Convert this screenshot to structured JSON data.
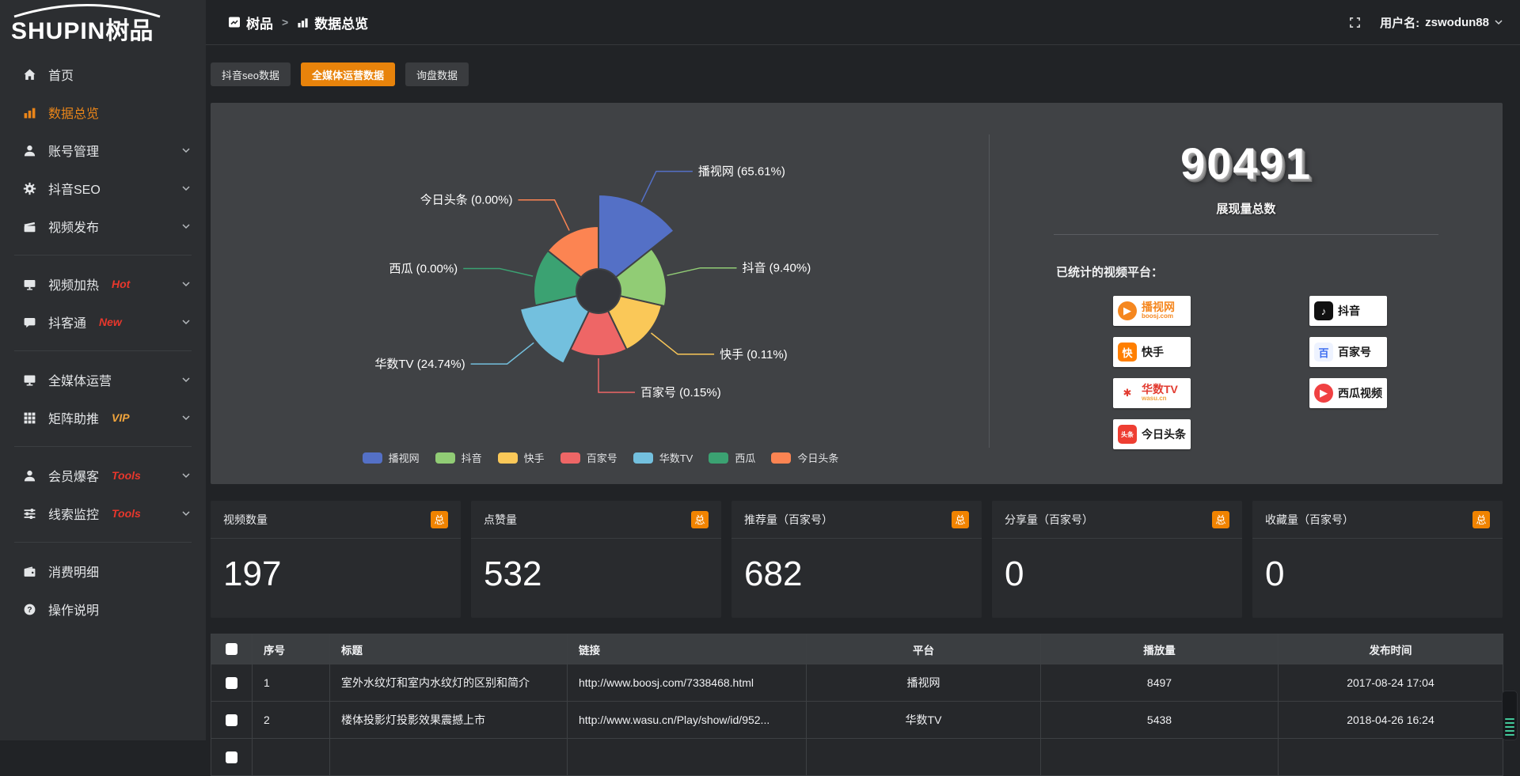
{
  "sidebar": {
    "brand": "SHUPIN",
    "brand_cn": "树品",
    "items": [
      {
        "label": "首页",
        "icon": "home"
      },
      {
        "label": "数据总览",
        "icon": "bar-chart",
        "active": true
      },
      {
        "label": "账号管理",
        "icon": "user",
        "chevron": true
      },
      {
        "label": "抖音SEO",
        "icon": "gear",
        "chevron": true
      },
      {
        "label": "视频发布",
        "icon": "clapper",
        "chevron": true,
        "divider_after": true
      },
      {
        "label": "视频加热",
        "icon": "screen",
        "tag": "Hot",
        "tag_color": "#e8372c",
        "chevron": true
      },
      {
        "label": "抖客通",
        "icon": "chat",
        "tag": "New",
        "tag_color": "#e8372c",
        "chevron": true,
        "divider_after": true
      },
      {
        "label": "全媒体运营",
        "icon": "monitor",
        "chevron": true
      },
      {
        "label": "矩阵助推",
        "icon": "grid",
        "tag": "VIP",
        "tag_color": "#f0a43c",
        "chevron": true,
        "divider_after": true
      },
      {
        "label": "会员爆客",
        "icon": "person",
        "tag": "Tools",
        "tag_color": "#e8372c",
        "chevron": true
      },
      {
        "label": "线索监控",
        "icon": "sliders",
        "tag": "Tools",
        "tag_color": "#e8372c",
        "chevron": true,
        "divider_after": true
      },
      {
        "label": "消费明细",
        "icon": "wallet"
      },
      {
        "label": "操作说明",
        "icon": "question"
      }
    ]
  },
  "topbar": {
    "breadcrumb_root": "树品",
    "breadcrumb_sep": ">",
    "breadcrumb_current": "数据总览",
    "username_label": "用户名:",
    "username": "zswodun88"
  },
  "tabs": [
    {
      "label": "抖音seo数据"
    },
    {
      "label": "全媒体运营数据",
      "active": true
    },
    {
      "label": "询盘数据"
    }
  ],
  "chart_data": {
    "type": "pie",
    "subtype": "nightingale-rose",
    "legend_position": "bottom",
    "label_format": "name (value%)",
    "slices": [
      {
        "name": "播视网",
        "value": 65.61,
        "color": "#5470c6"
      },
      {
        "name": "抖音",
        "value": 9.4,
        "color": "#91cc75"
      },
      {
        "name": "快手",
        "value": 0.11,
        "color": "#fac858"
      },
      {
        "name": "百家号",
        "value": 0.15,
        "color": "#ee6666"
      },
      {
        "name": "华数TV",
        "value": 24.74,
        "color": "#73c0de"
      },
      {
        "name": "西瓜",
        "value": 0.0,
        "color": "#3ba272"
      },
      {
        "name": "今日头条",
        "value": 0.0,
        "color": "#fc8452"
      }
    ]
  },
  "summary": {
    "total_value": "90491",
    "total_label": "展现量总数",
    "platforms_label": "已统计的视频平台：",
    "platforms": {
      "left": [
        {
          "name": "播视网",
          "sub": "boosj.com",
          "icon": "boosj-logo",
          "glyph": "▶",
          "glyph_bg": "#f5871f",
          "glyph_fg": "#ffffff",
          "shape": "circle",
          "name_color": "#f5871f",
          "sub_color": "#f5871f"
        },
        {
          "name": "快手",
          "icon": "kuaishou-logo",
          "glyph": "快",
          "glyph_bg": "#ff7f00",
          "glyph_fg": "#ffffff",
          "shape": "square",
          "name_color": "#1a1a1a"
        },
        {
          "name": "华数TV",
          "sub": "wasu.cn",
          "icon": "wasu-logo",
          "glyph": "✱",
          "glyph_bg": "#ffffff",
          "glyph_fg": "#e23b30",
          "shape": "square",
          "name_color": "#e23b30",
          "sub_color": "#f0a23c"
        },
        {
          "name": "今日头条",
          "icon": "toutiao-logo",
          "glyph": "头条",
          "glyph_bg": "#ee3e32",
          "glyph_fg": "#ffffff",
          "shape": "square",
          "name_color": "#1a1a1a"
        }
      ],
      "right": [
        {
          "name": "抖音",
          "icon": "douyin-logo",
          "glyph": "♪",
          "glyph_bg": "#111111",
          "glyph_fg": "#ffffff",
          "shape": "square",
          "name_color": "#111111"
        },
        {
          "name": "百家号",
          "icon": "baijiahao-logo",
          "glyph": "百",
          "glyph_bg": "#eef3ff",
          "glyph_fg": "#3b6cf0",
          "shape": "square",
          "name_color": "#1a1a1a"
        },
        {
          "name": "西瓜视频",
          "icon": "xigua-logo",
          "glyph": "▶",
          "glyph_bg": "#f04142",
          "glyph_fg": "#ffffff",
          "shape": "circle",
          "name_color": "#1a1a1a"
        }
      ]
    }
  },
  "stat_cards": [
    {
      "title": "视频数量",
      "badge": "总",
      "value": "197"
    },
    {
      "title": "点赞量",
      "badge": "总",
      "value": "532"
    },
    {
      "title": "推荐量（百家号）",
      "badge": "总",
      "value": "682"
    },
    {
      "title": "分享量（百家号）",
      "badge": "总",
      "value": "0"
    },
    {
      "title": "收藏量（百家号）",
      "badge": "总",
      "value": "0"
    }
  ],
  "table": {
    "columns": [
      "序号",
      "标题",
      "链接",
      "平台",
      "播放量",
      "发布时间"
    ],
    "rows": [
      {
        "index": "1",
        "title": "室外水纹灯和室内水纹灯的区别和简介",
        "link": "http://www.boosj.com/7338468.html",
        "platform": "播视网",
        "plays": "8497",
        "time": "2017-08-24 17:04"
      },
      {
        "index": "2",
        "title": "楼体投影灯投影效果震撼上市",
        "link": "http://www.wasu.cn/Play/show/id/952...",
        "platform": "华数TV",
        "plays": "5438",
        "time": "2018-04-26 16:24"
      },
      {
        "index": "",
        "title": "",
        "link": "",
        "platform": "",
        "plays": "",
        "time": ""
      }
    ]
  }
}
